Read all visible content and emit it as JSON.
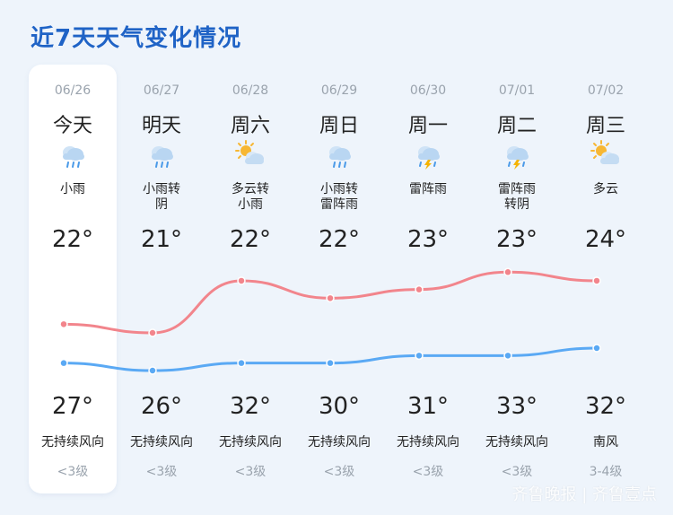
{
  "title": "近7天天气变化情况",
  "days": [
    {
      "date": "06/26",
      "name": "今天",
      "condition": "小雨",
      "icon": "light-rain-icon",
      "low_label": "22°",
      "high_label": "27°",
      "wind": "无持续风向",
      "level": "<3级"
    },
    {
      "date": "06/27",
      "name": "明天",
      "condition": "小雨转\n阴",
      "icon": "light-rain-icon",
      "low_label": "21°",
      "high_label": "26°",
      "wind": "无持续风向",
      "level": "<3级"
    },
    {
      "date": "06/28",
      "name": "周六",
      "condition": "多云转\n小雨",
      "icon": "partly-cloudy-icon",
      "low_label": "22°",
      "high_label": "32°",
      "wind": "无持续风向",
      "level": "<3级"
    },
    {
      "date": "06/29",
      "name": "周日",
      "condition": "小雨转\n雷阵雨",
      "icon": "light-rain-icon",
      "low_label": "22°",
      "high_label": "30°",
      "wind": "无持续风向",
      "level": "<3级"
    },
    {
      "date": "06/30",
      "name": "周一",
      "condition": "雷阵雨",
      "icon": "thunderstorm-icon",
      "low_label": "23°",
      "high_label": "31°",
      "wind": "无持续风向",
      "level": "<3级"
    },
    {
      "date": "07/01",
      "name": "周二",
      "condition": "雷阵雨\n转阴",
      "icon": "thunderstorm-icon",
      "low_label": "23°",
      "high_label": "33°",
      "wind": "无持续风向",
      "level": "<3级"
    },
    {
      "date": "07/02",
      "name": "周三",
      "condition": "多云",
      "icon": "partly-cloudy-icon",
      "low_label": "24°",
      "high_label": "32°",
      "wind": "南风",
      "level": "3-4级"
    }
  ],
  "chart_data": {
    "type": "line",
    "categories": [
      "06/26",
      "06/27",
      "06/28",
      "06/29",
      "06/30",
      "07/01",
      "07/02"
    ],
    "series": [
      {
        "values": [
          27,
          26,
          32,
          30,
          31,
          33,
          32
        ],
        "color": "#f2858c"
      },
      {
        "values": [
          22,
          21,
          22,
          22,
          23,
          23,
          24
        ],
        "color": "#5aa9f4"
      }
    ]
  },
  "watermark": "齐鲁晚报 | 齐鲁壹点"
}
